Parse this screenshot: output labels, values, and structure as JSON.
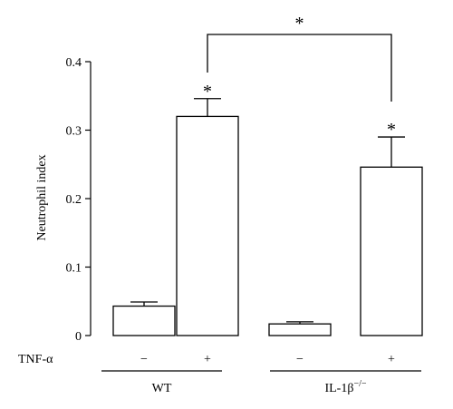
{
  "chart_data": {
    "type": "bar",
    "ylabel": "Neutrophil index",
    "ylim": [
      0,
      0.4
    ],
    "yticks": [
      {
        "value": 0,
        "label": "0"
      },
      {
        "value": 0.1,
        "label": "0.1"
      },
      {
        "value": 0.2,
        "label": "0.2"
      },
      {
        "value": 0.3,
        "label": "0.3"
      },
      {
        "value": 0.4,
        "label": "0.4"
      }
    ],
    "condition_row_label": "TNF-α",
    "bars": [
      {
        "group": "WT",
        "tnf": "−",
        "value": 0.043,
        "error": 0.006
      },
      {
        "group": "WT",
        "tnf": "+",
        "value": 0.32,
        "error": 0.026,
        "significance": "*"
      },
      {
        "group": "IL-1β−/−",
        "tnf": "−",
        "value": 0.017,
        "error": 0.003
      },
      {
        "group": "IL-1β−/−",
        "tnf": "+",
        "value": 0.246,
        "error": 0.044,
        "significance": "*"
      }
    ],
    "groups": [
      {
        "label": "WT"
      },
      {
        "label": "IL-1β",
        "superscript": "−/−"
      }
    ],
    "comparison": {
      "from_bar": 1,
      "to_bar": 3,
      "label": "*"
    },
    "colors": {
      "bar_fill": "#ffffff",
      "bar_stroke": "#000000"
    }
  }
}
